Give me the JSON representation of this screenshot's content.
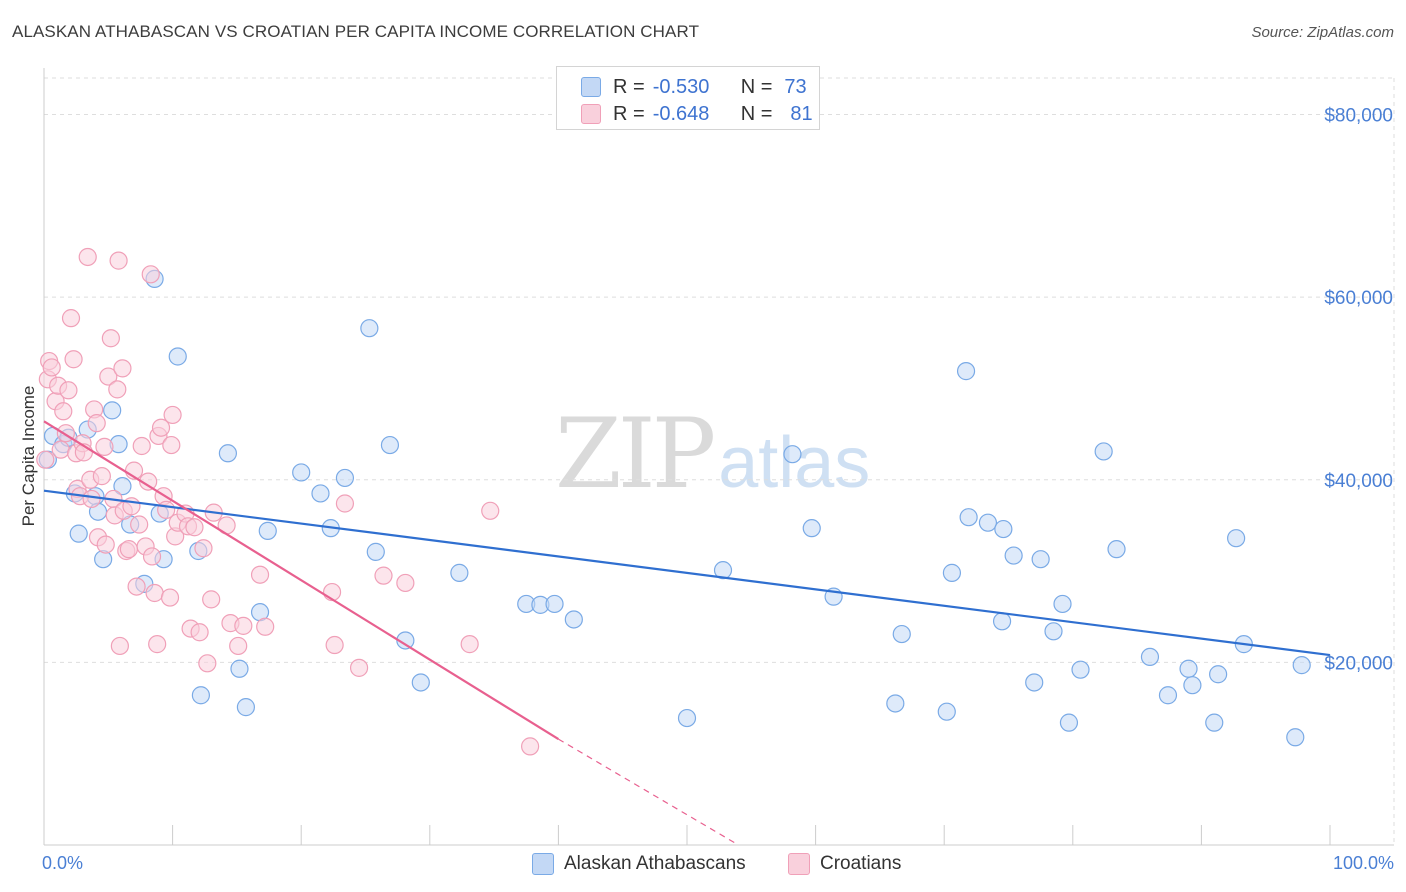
{
  "chart_data": {
    "type": "scatter",
    "title": "ALASKAN ATHABASCAN VS CROATIAN PER CAPITA INCOME CORRELATION CHART",
    "source": "Source: ZipAtlas.com",
    "xlabel": "",
    "ylabel": "Per Capita Income",
    "xlim": [
      0,
      100
    ],
    "ylim": [
      0,
      84000
    ],
    "x_tick_labels": {
      "left": "0.0%",
      "right": "100.0%"
    },
    "y_ticks": [
      {
        "value": 20000,
        "label": "$20,000"
      },
      {
        "value": 40000,
        "label": "$40,000"
      },
      {
        "value": 60000,
        "label": "$60,000"
      },
      {
        "value": 80000,
        "label": "$80,000"
      }
    ],
    "grid": true,
    "legend": {
      "placement": "top-center",
      "entries": [
        {
          "series": "Alaskan Athabascans",
          "r_label": "R =",
          "r_value": "-0.530",
          "n_label": "N =",
          "n_value": "73"
        },
        {
          "series": "Croatians",
          "r_label": "R =",
          "r_value": "-0.648",
          "n_label": "N =",
          "n_value": "81"
        }
      ]
    },
    "watermark": {
      "zip": "ZIP",
      "atlas": "atlas"
    },
    "series": [
      {
        "name": "Alaskan Athabascans",
        "color": "#7aaae6",
        "fill": "#c3d8f5",
        "trend_color": "#2f6fd0",
        "trend": {
          "x0": 0,
          "y0": 38800,
          "x1": 100,
          "y1": 20800
        },
        "points": [
          [
            0.3,
            42200
          ],
          [
            0.7,
            44800
          ],
          [
            1.5,
            43900
          ],
          [
            1.9,
            44600
          ],
          [
            2.4,
            38500
          ],
          [
            2.7,
            34100
          ],
          [
            3.4,
            45500
          ],
          [
            4.0,
            38200
          ],
          [
            4.2,
            36500
          ],
          [
            4.6,
            31300
          ],
          [
            5.3,
            47600
          ],
          [
            5.8,
            43900
          ],
          [
            6.1,
            39300
          ],
          [
            6.7,
            35100
          ],
          [
            7.8,
            28600
          ],
          [
            8.6,
            62000
          ],
          [
            9.0,
            36300
          ],
          [
            9.3,
            31300
          ],
          [
            10.4,
            53500
          ],
          [
            12.0,
            32200
          ],
          [
            12.2,
            16400
          ],
          [
            14.3,
            42900
          ],
          [
            15.2,
            19300
          ],
          [
            15.7,
            15100
          ],
          [
            16.8,
            25500
          ],
          [
            17.4,
            34400
          ],
          [
            20.0,
            40800
          ],
          [
            21.5,
            38500
          ],
          [
            22.3,
            34700
          ],
          [
            23.4,
            40200
          ],
          [
            25.3,
            56600
          ],
          [
            25.8,
            32100
          ],
          [
            26.9,
            43800
          ],
          [
            28.1,
            22400
          ],
          [
            29.3,
            17800
          ],
          [
            32.3,
            29800
          ],
          [
            37.5,
            26400
          ],
          [
            38.6,
            26300
          ],
          [
            39.7,
            26400
          ],
          [
            41.2,
            24700
          ],
          [
            50.0,
            13900
          ],
          [
            52.8,
            30100
          ],
          [
            58.2,
            42800
          ],
          [
            59.7,
            34700
          ],
          [
            61.4,
            27200
          ],
          [
            66.2,
            15500
          ],
          [
            66.7,
            23100
          ],
          [
            70.2,
            14600
          ],
          [
            70.6,
            29800
          ],
          [
            71.7,
            51900
          ],
          [
            71.9,
            35900
          ],
          [
            73.4,
            35300
          ],
          [
            74.5,
            24500
          ],
          [
            74.6,
            34600
          ],
          [
            75.4,
            31700
          ],
          [
            77.0,
            17800
          ],
          [
            77.5,
            31300
          ],
          [
            78.5,
            23400
          ],
          [
            79.2,
            26400
          ],
          [
            79.7,
            13400
          ],
          [
            80.6,
            19200
          ],
          [
            82.4,
            43100
          ],
          [
            83.4,
            32400
          ],
          [
            86.0,
            20600
          ],
          [
            87.4,
            16400
          ],
          [
            89.0,
            19300
          ],
          [
            89.3,
            17500
          ],
          [
            91.0,
            13400
          ],
          [
            91.3,
            18700
          ],
          [
            92.7,
            33600
          ],
          [
            93.3,
            22000
          ],
          [
            97.3,
            11800
          ],
          [
            97.8,
            19700
          ]
        ]
      },
      {
        "name": "Croatians",
        "color": "#f0a0b8",
        "fill": "#f9d0dc",
        "trend_color": "#e8608f",
        "trend": {
          "x0": 0,
          "y0": 46400,
          "x1": 40,
          "y1": 11600
        },
        "trend_dashed": {
          "x0": 40,
          "y0": 11600,
          "x1": 54,
          "y1": 0
        },
        "points": [
          [
            0.1,
            42200
          ],
          [
            0.3,
            51000
          ],
          [
            0.4,
            53000
          ],
          [
            0.6,
            52300
          ],
          [
            0.9,
            48600
          ],
          [
            1.1,
            50300
          ],
          [
            1.3,
            43300
          ],
          [
            1.5,
            47500
          ],
          [
            1.7,
            45100
          ],
          [
            1.9,
            49800
          ],
          [
            2.1,
            57700
          ],
          [
            2.3,
            53200
          ],
          [
            2.5,
            42900
          ],
          [
            2.6,
            39000
          ],
          [
            2.8,
            38200
          ],
          [
            3.0,
            44000
          ],
          [
            3.1,
            43000
          ],
          [
            3.4,
            64400
          ],
          [
            3.6,
            40000
          ],
          [
            3.7,
            37900
          ],
          [
            3.9,
            47700
          ],
          [
            4.1,
            46200
          ],
          [
            4.2,
            33700
          ],
          [
            4.5,
            40400
          ],
          [
            4.7,
            43600
          ],
          [
            4.8,
            32900
          ],
          [
            5.0,
            51300
          ],
          [
            5.2,
            55500
          ],
          [
            5.4,
            37900
          ],
          [
            5.5,
            36100
          ],
          [
            5.7,
            49900
          ],
          [
            5.8,
            64000
          ],
          [
            6.1,
            52200
          ],
          [
            6.2,
            36600
          ],
          [
            6.4,
            32200
          ],
          [
            6.6,
            32400
          ],
          [
            6.8,
            37100
          ],
          [
            7.0,
            41000
          ],
          [
            7.2,
            28300
          ],
          [
            7.4,
            35100
          ],
          [
            7.6,
            43700
          ],
          [
            7.9,
            32700
          ],
          [
            8.1,
            39800
          ],
          [
            8.3,
            62500
          ],
          [
            8.4,
            31600
          ],
          [
            8.6,
            27600
          ],
          [
            8.8,
            22000
          ],
          [
            8.9,
            44800
          ],
          [
            9.1,
            45700
          ],
          [
            9.3,
            38200
          ],
          [
            9.5,
            36700
          ],
          [
            9.8,
            27100
          ],
          [
            9.9,
            43800
          ],
          [
            10.0,
            47100
          ],
          [
            10.2,
            33800
          ],
          [
            10.4,
            35300
          ],
          [
            11.0,
            36300
          ],
          [
            11.2,
            34900
          ],
          [
            11.4,
            23700
          ],
          [
            11.7,
            34800
          ],
          [
            12.1,
            23300
          ],
          [
            12.4,
            32500
          ],
          [
            13.0,
            26900
          ],
          [
            13.2,
            36400
          ],
          [
            14.2,
            35000
          ],
          [
            14.5,
            24300
          ],
          [
            15.1,
            21800
          ],
          [
            15.5,
            24000
          ],
          [
            16.8,
            29600
          ],
          [
            17.2,
            23900
          ],
          [
            22.4,
            27700
          ],
          [
            22.6,
            21900
          ],
          [
            23.4,
            37400
          ],
          [
            24.5,
            19400
          ],
          [
            26.4,
            29500
          ],
          [
            28.1,
            28700
          ],
          [
            33.1,
            22000
          ],
          [
            34.7,
            36600
          ],
          [
            37.8,
            10800
          ],
          [
            5.9,
            21800
          ],
          [
            12.7,
            19900
          ]
        ]
      }
    ]
  },
  "bottom_legend": [
    {
      "label": "Alaskan Athabascans"
    },
    {
      "label": "Croatians"
    }
  ]
}
